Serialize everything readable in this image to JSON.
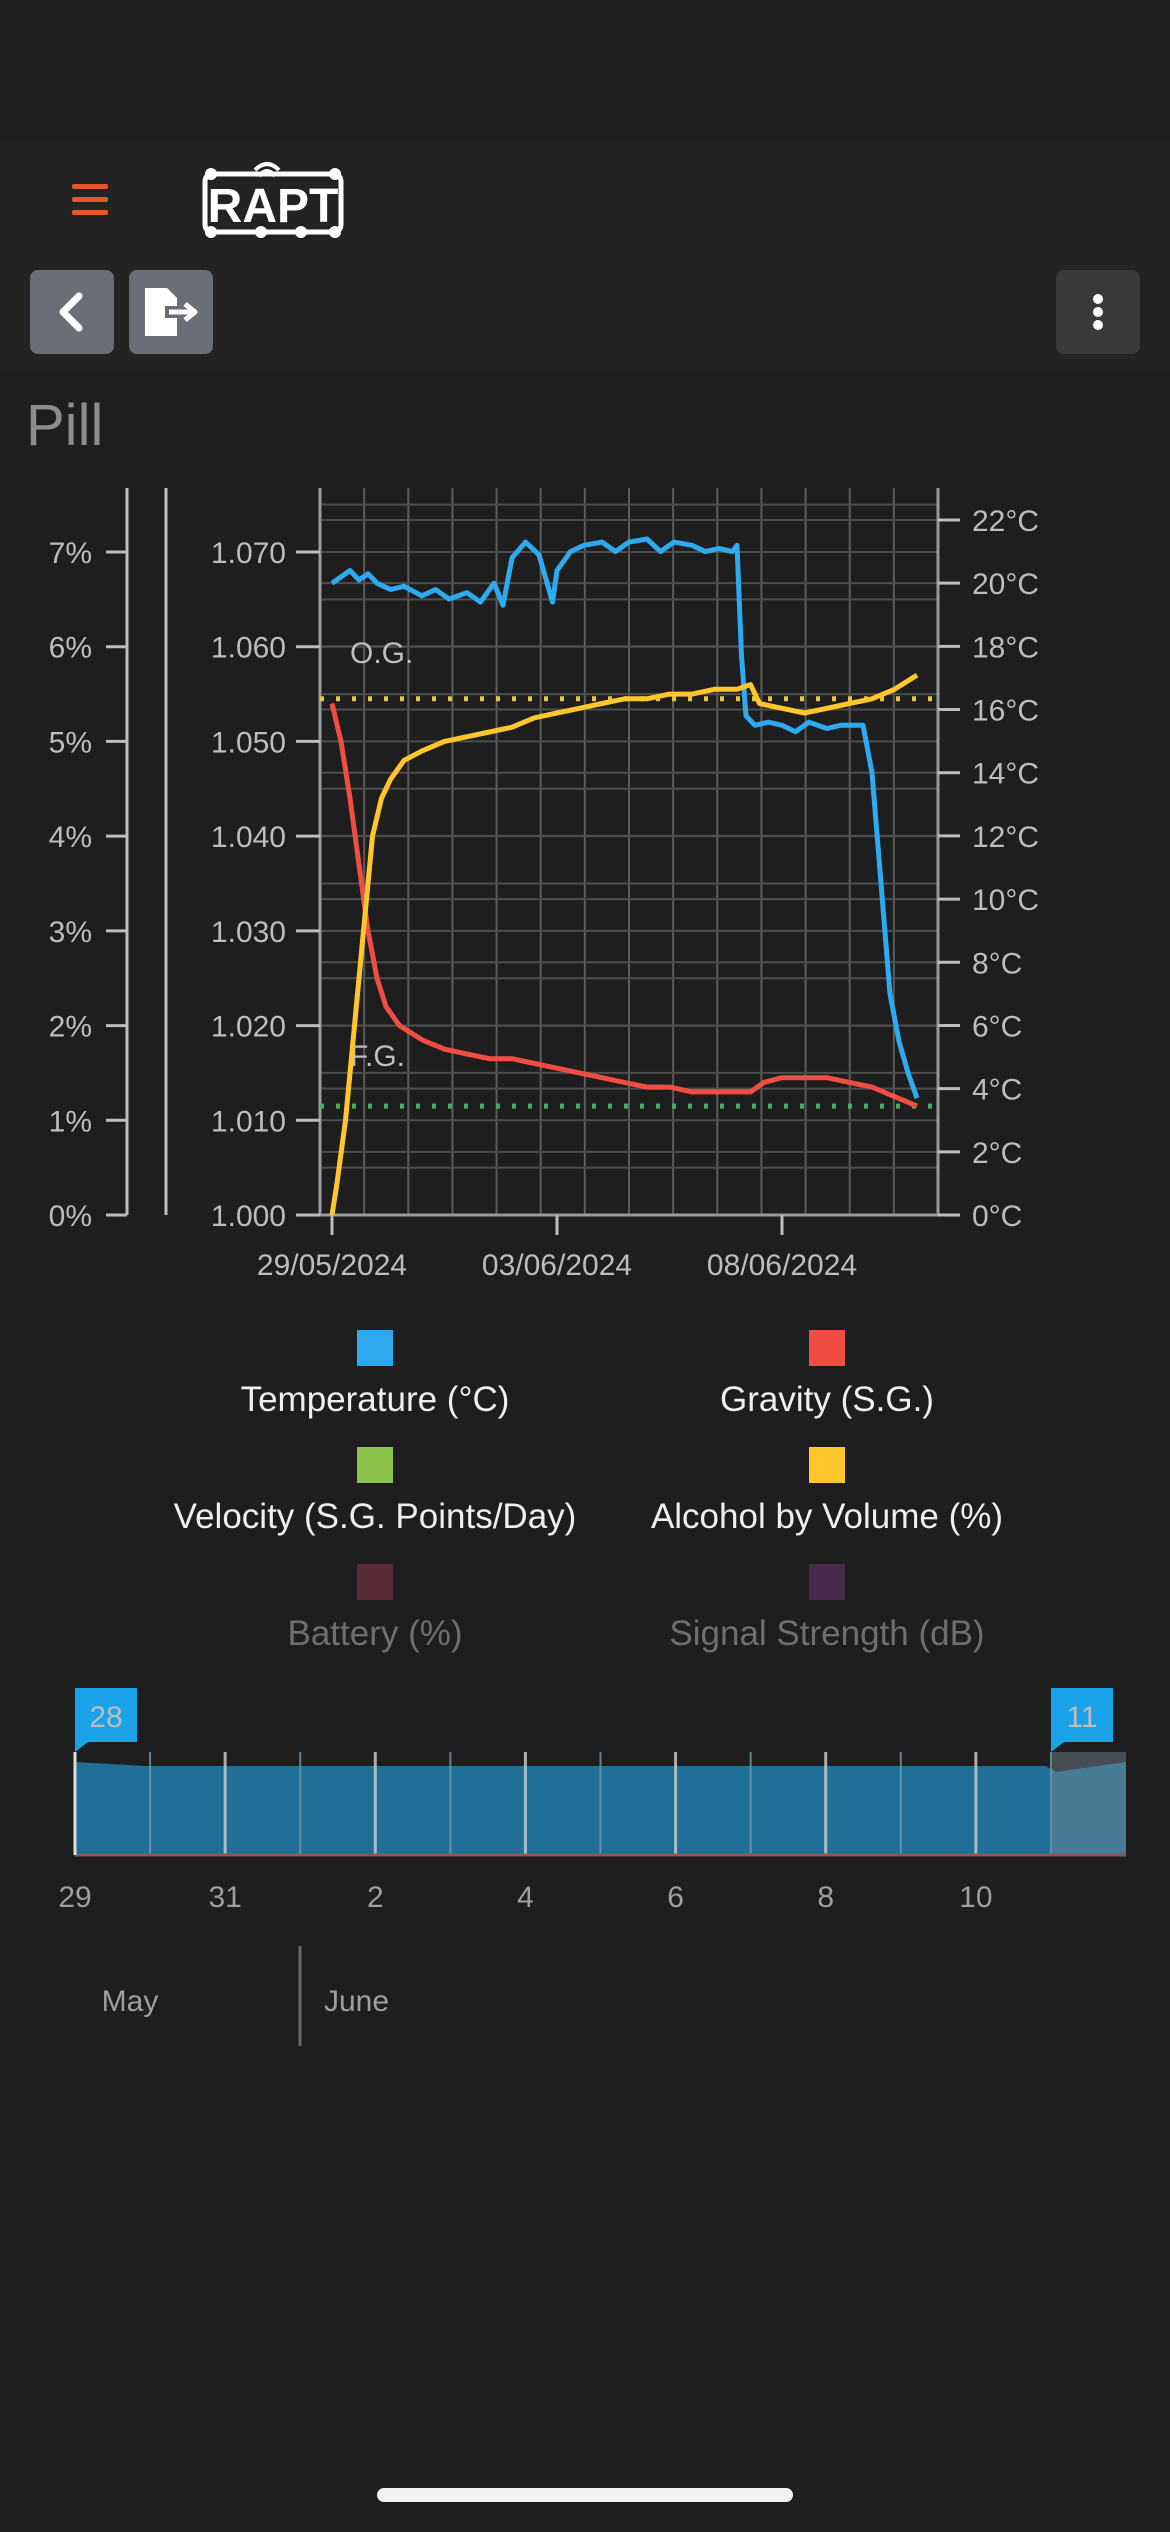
{
  "header": {
    "title": "Pill",
    "menu_icon": "hamburger-menu-icon",
    "logo_text": "RAPT",
    "back_icon": "chevron-left-icon",
    "export_icon": "file-export-icon",
    "more_icon": "more-vertical-icon",
    "accent_color": "#e4572e"
  },
  "chart_data": {
    "type": "line",
    "x_axis": {
      "ticks": [
        "29/05/2024",
        "03/06/2024",
        "08/06/2024"
      ]
    },
    "y_axes": {
      "abv_percent": {
        "ticks": [
          "0%",
          "1%",
          "2%",
          "3%",
          "4%",
          "5%",
          "6%",
          "7%"
        ],
        "range": [
          0,
          7
        ]
      },
      "gravity": {
        "ticks": [
          "1.000",
          "1.010",
          "1.020",
          "1.030",
          "1.040",
          "1.050",
          "1.060",
          "1.070"
        ],
        "range": [
          1.0,
          1.07
        ]
      },
      "temperature": {
        "ticks": [
          "0°C",
          "2°C",
          "4°C",
          "6°C",
          "8°C",
          "10°C",
          "12°C",
          "14°C",
          "16°C",
          "18°C",
          "20°C",
          "22°C"
        ],
        "range": [
          0,
          22
        ]
      }
    },
    "annotations": {
      "og_label": "O.G.",
      "fg_label": "F.G.",
      "og_value": 1.0545,
      "fg_value": 1.0115
    },
    "series": [
      {
        "name": "Temperature (°C)",
        "color": "#2eaaf0",
        "unit": "°C",
        "points": [
          [
            29.0,
            20.0
          ],
          [
            29.2,
            20.2
          ],
          [
            29.4,
            20.4
          ],
          [
            29.6,
            20.1
          ],
          [
            29.8,
            20.3
          ],
          [
            30.0,
            20.0
          ],
          [
            30.3,
            19.8
          ],
          [
            30.6,
            19.9
          ],
          [
            31.0,
            19.6
          ],
          [
            31.3,
            19.8
          ],
          [
            31.6,
            19.5
          ],
          [
            32.0,
            19.7
          ],
          [
            32.3,
            19.4
          ],
          [
            32.6,
            20.0
          ],
          [
            32.8,
            19.3
          ],
          [
            33.0,
            20.8
          ],
          [
            33.3,
            21.3
          ],
          [
            33.6,
            20.9
          ],
          [
            33.9,
            19.4
          ],
          [
            34.0,
            20.4
          ],
          [
            34.3,
            21.0
          ],
          [
            34.6,
            21.2
          ],
          [
            35.0,
            21.3
          ],
          [
            35.3,
            21.0
          ],
          [
            35.6,
            21.3
          ],
          [
            36.0,
            21.4
          ],
          [
            36.3,
            21.0
          ],
          [
            36.6,
            21.3
          ],
          [
            37.0,
            21.2
          ],
          [
            37.3,
            21.0
          ],
          [
            37.6,
            21.1
          ],
          [
            37.9,
            21.0
          ],
          [
            38.0,
            21.2
          ],
          [
            38.1,
            17.7
          ],
          [
            38.2,
            15.8
          ],
          [
            38.4,
            15.5
          ],
          [
            38.7,
            15.6
          ],
          [
            39.0,
            15.5
          ],
          [
            39.3,
            15.3
          ],
          [
            39.6,
            15.6
          ],
          [
            40.0,
            15.4
          ],
          [
            40.3,
            15.5
          ],
          [
            40.6,
            15.5
          ],
          [
            40.8,
            15.5
          ],
          [
            41.0,
            14.0
          ],
          [
            41.2,
            10.5
          ],
          [
            41.4,
            7.0
          ],
          [
            41.6,
            5.5
          ],
          [
            41.8,
            4.5
          ],
          [
            42.0,
            3.7
          ]
        ]
      },
      {
        "name": "Gravity (S.G.)",
        "color": "#f04e44",
        "unit": "S.G.",
        "points": [
          [
            29.0,
            1.054
          ],
          [
            29.2,
            1.05
          ],
          [
            29.4,
            1.044
          ],
          [
            29.6,
            1.037
          ],
          [
            29.8,
            1.03
          ],
          [
            30.0,
            1.025
          ],
          [
            30.2,
            1.022
          ],
          [
            30.5,
            1.02
          ],
          [
            31.0,
            1.0185
          ],
          [
            31.5,
            1.0175
          ],
          [
            32.0,
            1.017
          ],
          [
            32.5,
            1.0165
          ],
          [
            33.0,
            1.0165
          ],
          [
            33.5,
            1.016
          ],
          [
            34.0,
            1.0155
          ],
          [
            34.5,
            1.015
          ],
          [
            35.0,
            1.0145
          ],
          [
            35.5,
            1.014
          ],
          [
            36.0,
            1.0135
          ],
          [
            36.5,
            1.0135
          ],
          [
            37.0,
            1.013
          ],
          [
            37.5,
            1.013
          ],
          [
            38.0,
            1.013
          ],
          [
            38.3,
            1.013
          ],
          [
            38.6,
            1.014
          ],
          [
            39.0,
            1.0145
          ],
          [
            39.5,
            1.0145
          ],
          [
            40.0,
            1.0145
          ],
          [
            40.5,
            1.014
          ],
          [
            41.0,
            1.0135
          ],
          [
            41.5,
            1.0125
          ],
          [
            42.0,
            1.0115
          ]
        ]
      },
      {
        "name": "Velocity (S.G. Points/Day)",
        "color": "#8bc34a",
        "unit": "S.G. Points/Day",
        "points": []
      },
      {
        "name": "Alcohol by Volume (%)",
        "color": "#ffc72c",
        "unit": "%",
        "points": [
          [
            29.0,
            0.0
          ],
          [
            29.1,
            0.3
          ],
          [
            29.3,
            1.0
          ],
          [
            29.5,
            2.0
          ],
          [
            29.7,
            3.0
          ],
          [
            29.9,
            4.0
          ],
          [
            30.1,
            4.4
          ],
          [
            30.3,
            4.6
          ],
          [
            30.6,
            4.8
          ],
          [
            31.0,
            4.9
          ],
          [
            31.5,
            5.0
          ],
          [
            32.0,
            5.05
          ],
          [
            32.5,
            5.1
          ],
          [
            33.0,
            5.15
          ],
          [
            33.5,
            5.25
          ],
          [
            34.0,
            5.3
          ],
          [
            34.5,
            5.35
          ],
          [
            35.0,
            5.4
          ],
          [
            35.5,
            5.45
          ],
          [
            36.0,
            5.45
          ],
          [
            36.5,
            5.5
          ],
          [
            37.0,
            5.5
          ],
          [
            37.5,
            5.55
          ],
          [
            38.0,
            5.55
          ],
          [
            38.3,
            5.6
          ],
          [
            38.5,
            5.4
          ],
          [
            39.0,
            5.35
          ],
          [
            39.5,
            5.3
          ],
          [
            40.0,
            5.35
          ],
          [
            40.5,
            5.4
          ],
          [
            41.0,
            5.45
          ],
          [
            41.5,
            5.55
          ],
          [
            42.0,
            5.7
          ]
        ]
      },
      {
        "name": "Battery (%)",
        "color": "#5a2a36",
        "unit": "%",
        "points": []
      },
      {
        "name": "Signal Strength (dB)",
        "color": "#4a2a4c",
        "unit": "dB",
        "points": []
      }
    ]
  },
  "legend": [
    {
      "label": "Temperature (°C)",
      "color": "#2eaaf0",
      "active": true
    },
    {
      "label": "Gravity (S.G.)",
      "color": "#f04e44",
      "active": true
    },
    {
      "label": "Velocity (S.G. Points/Day)",
      "color": "#8bc34a",
      "active": true
    },
    {
      "label": "Alcohol by Volume (%)",
      "color": "#ffc72c",
      "active": true
    },
    {
      "label": "Battery (%)",
      "color": "#5a2a36",
      "active": false
    },
    {
      "label": "Signal Strength (dB)",
      "color": "#4a2a4c",
      "active": false
    }
  ],
  "navigator": {
    "start_handle": "28",
    "end_handle": "11",
    "day_ticks": [
      "29",
      "31",
      "2",
      "4",
      "6",
      "8",
      "10"
    ],
    "months": [
      "May",
      "June"
    ],
    "handle_color": "#1aa3e8",
    "area_color": "#1f6f96"
  }
}
